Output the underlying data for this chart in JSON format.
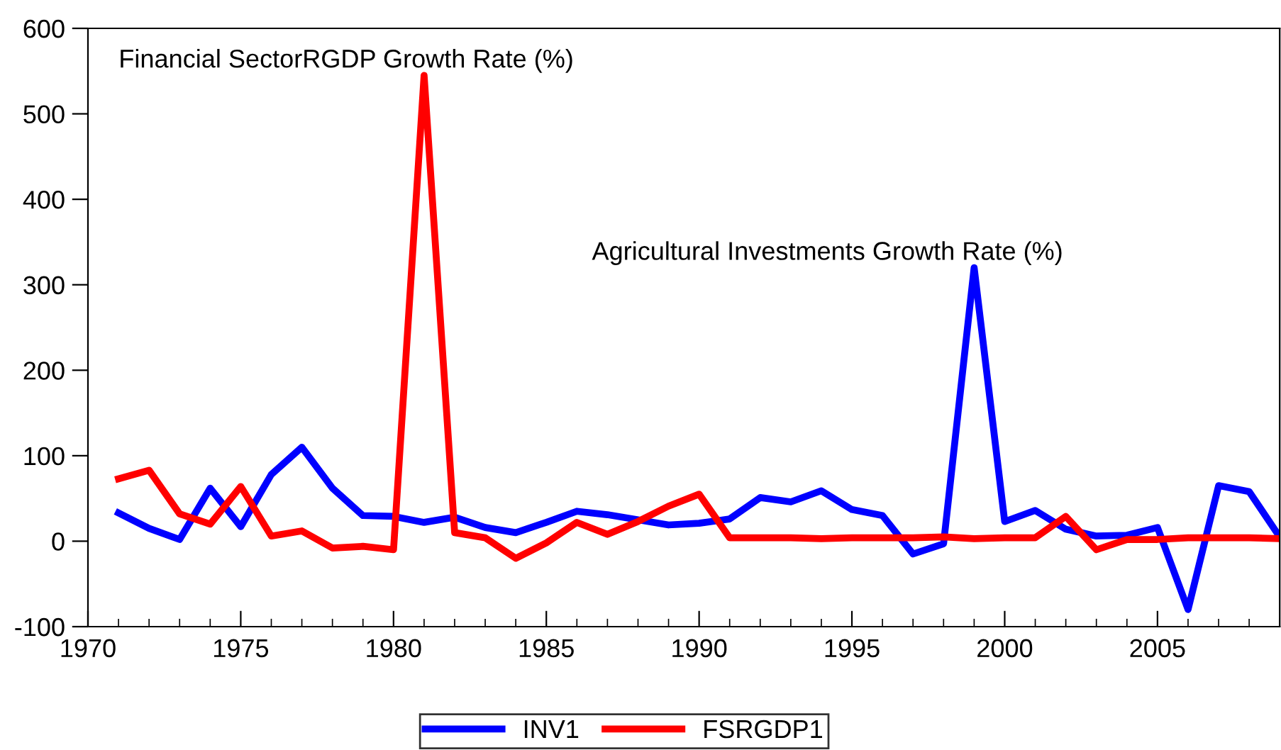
{
  "chart_data": {
    "type": "line",
    "x": [
      1971,
      1972,
      1973,
      1974,
      1975,
      1976,
      1977,
      1978,
      1979,
      1980,
      1981,
      1982,
      1983,
      1984,
      1985,
      1986,
      1987,
      1988,
      1989,
      1990,
      1991,
      1992,
      1993,
      1994,
      1995,
      1996,
      1997,
      1998,
      1999,
      2000,
      2001,
      2002,
      2003,
      2004,
      2005,
      2006,
      2007,
      2008,
      2009
    ],
    "series": [
      {
        "name": "INV1",
        "color": "#0000ff",
        "values": [
          33,
          15,
          2,
          62,
          17,
          78,
          110,
          62,
          30,
          29,
          22,
          28,
          16,
          10,
          22,
          35,
          31,
          25,
          19,
          21,
          26,
          51,
          46,
          59,
          37,
          30,
          -15,
          -3,
          320,
          23,
          36,
          14,
          6,
          7,
          16,
          -80,
          65,
          58,
          5
        ]
      },
      {
        "name": "FSRGDP1",
        "color": "#ff0000",
        "values": [
          73,
          83,
          32,
          20,
          64,
          6,
          12,
          -8,
          -6,
          -10,
          545,
          10,
          4,
          -20,
          -2,
          22,
          8,
          23,
          41,
          55,
          4,
          4,
          4,
          3,
          4,
          4,
          4,
          5,
          3,
          4,
          4,
          29,
          -10,
          2,
          2,
          4,
          4,
          4,
          3
        ]
      }
    ],
    "annotations": [
      {
        "text": "Financial SectorRGDP Growth Rate (%)",
        "x": 1981,
        "y": 545
      },
      {
        "text": "Agricultural Investments Growth Rate (%)",
        "x": 1999,
        "y": 320
      }
    ],
    "xlim": [
      1970,
      2009
    ],
    "xticks": [
      1970,
      1975,
      1980,
      1985,
      1990,
      1995,
      2000,
      2005
    ],
    "ylim": [
      -100,
      600
    ],
    "yticks": [
      -100,
      0,
      100,
      200,
      300,
      400,
      500,
      600
    ],
    "grid": false,
    "legend": "bottom",
    "line_style": "solid",
    "marker": "none"
  }
}
